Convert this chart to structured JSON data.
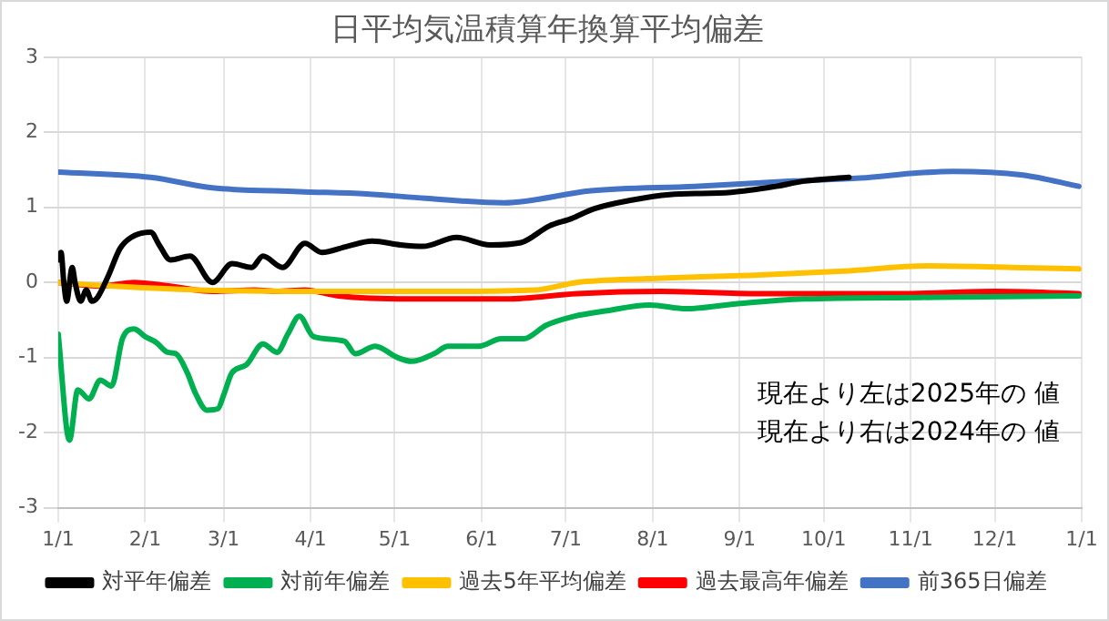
{
  "chart_data": {
    "type": "line",
    "title": "日平均気温積算年換算平均偏差",
    "xlim": [
      "2025-01-01",
      "2026-01-01"
    ],
    "xticks": [
      {
        "value": "2025-01-01",
        "label": "1/1"
      },
      {
        "value": "2025-02-01",
        "label": "2/1"
      },
      {
        "value": "2025-03-01",
        "label": "3/1"
      },
      {
        "value": "2025-04-01",
        "label": "4/1"
      },
      {
        "value": "2025-05-01",
        "label": "5/1"
      },
      {
        "value": "2025-06-01",
        "label": "6/1"
      },
      {
        "value": "2025-07-01",
        "label": "7/1"
      },
      {
        "value": "2025-08-01",
        "label": "8/1"
      },
      {
        "value": "2025-09-01",
        "label": "9/1"
      },
      {
        "value": "2025-10-01",
        "label": "10/1"
      },
      {
        "value": "2025-11-01",
        "label": "11/1"
      },
      {
        "value": "2025-12-01",
        "label": "12/1"
      },
      {
        "value": "2026-01-01",
        "label": "1/1"
      }
    ],
    "ylim": [
      -3,
      3
    ],
    "yticks": [
      -3,
      -2,
      -1,
      0,
      1,
      2,
      3
    ],
    "grid": true,
    "legend": "bottom",
    "marker": "none",
    "line_style": "solid",
    "annotations": [
      "現在より左は2025年の 値",
      "現在より右は2024年の 値"
    ],
    "series": [
      {
        "name": "対平年偏差",
        "color": "#000000",
        "x": [
          "2025-01-01",
          "2025-01-02",
          "2025-01-03",
          "2025-01-04",
          "2025-01-06",
          "2025-01-07",
          "2025-01-09",
          "2025-01-11",
          "2025-01-13",
          "2025-01-15",
          "2025-01-19",
          "2025-01-23",
          "2025-01-27",
          "2025-02-03",
          "2025-02-06",
          "2025-02-10",
          "2025-02-17",
          "2025-02-25",
          "2025-03-04",
          "2025-03-11",
          "2025-03-15",
          "2025-03-22",
          "2025-03-30",
          "2025-04-05",
          "2025-04-14",
          "2025-04-23",
          "2025-05-03",
          "2025-05-11",
          "2025-05-23",
          "2025-06-04",
          "2025-06-15",
          "2025-06-25",
          "2025-07-03",
          "2025-07-11",
          "2025-07-25",
          "2025-08-07",
          "2025-08-29",
          "2025-09-14",
          "2025-09-24",
          "2025-10-10"
        ],
        "values": [
          0.3,
          0.4,
          0.0,
          -0.25,
          0.2,
          0.0,
          -0.25,
          -0.1,
          -0.25,
          -0.2,
          0.1,
          0.45,
          0.6,
          0.67,
          0.5,
          0.3,
          0.35,
          0.0,
          0.25,
          0.2,
          0.35,
          0.2,
          0.52,
          0.4,
          0.48,
          0.55,
          0.5,
          0.48,
          0.6,
          0.5,
          0.53,
          0.75,
          0.85,
          0.98,
          1.1,
          1.17,
          1.2,
          1.28,
          1.35,
          1.4
        ]
      },
      {
        "name": "対前年偏差",
        "color": "#00b050",
        "x": [
          "2025-01-01",
          "2025-01-05",
          "2025-01-08",
          "2025-01-12",
          "2025-01-16",
          "2025-01-20",
          "2025-01-24",
          "2025-01-28",
          "2025-02-01",
          "2025-02-05",
          "2025-02-09",
          "2025-02-12",
          "2025-02-16",
          "2025-02-19",
          "2025-02-23",
          "2025-02-27",
          "2025-03-01",
          "2025-03-04",
          "2025-03-09",
          "2025-03-15",
          "2025-03-20",
          "2025-03-24",
          "2025-03-28",
          "2025-04-02",
          "2025-04-13",
          "2025-04-17",
          "2025-04-24",
          "2025-05-02",
          "2025-05-07",
          "2025-05-15",
          "2025-05-20",
          "2025-05-31",
          "2025-06-08",
          "2025-06-16",
          "2025-06-24",
          "2025-07-04",
          "2025-07-15",
          "2025-07-31",
          "2025-08-13",
          "2025-09-01",
          "2025-09-24",
          "2025-11-04",
          "2025-12-31"
        ],
        "values": [
          -0.69,
          -2.1,
          -1.43,
          -1.55,
          -1.3,
          -1.38,
          -0.74,
          -0.62,
          -0.72,
          -0.8,
          -0.93,
          -0.95,
          -1.2,
          -1.48,
          -1.7,
          -1.68,
          -1.5,
          -1.2,
          -1.1,
          -0.82,
          -0.93,
          -0.68,
          -0.45,
          -0.72,
          -0.78,
          -0.95,
          -0.85,
          -1.0,
          -1.05,
          -0.95,
          -0.85,
          -0.85,
          -0.75,
          -0.75,
          -0.57,
          -0.45,
          -0.38,
          -0.3,
          -0.35,
          -0.28,
          -0.22,
          -0.2,
          -0.18
        ]
      },
      {
        "name": "過去5年平均偏差",
        "color": "#ffc000",
        "x": [
          "2025-01-01",
          "2025-01-21",
          "2025-02-20",
          "2025-04-01",
          "2025-05-11",
          "2025-06-20",
          "2025-07-05",
          "2025-07-30",
          "2025-09-08",
          "2025-10-08",
          "2025-11-07",
          "2025-12-07",
          "2025-12-31"
        ],
        "values": [
          0.0,
          -0.05,
          -0.1,
          -0.12,
          -0.12,
          -0.1,
          0.0,
          0.05,
          0.1,
          0.15,
          0.22,
          0.2,
          0.18
        ]
      },
      {
        "name": "過去最高年偏差",
        "color": "#ff0000",
        "x": [
          "2025-01-01",
          "2025-01-16",
          "2025-01-28",
          "2025-02-10",
          "2025-02-25",
          "2025-03-12",
          "2025-03-20",
          "2025-03-30",
          "2025-04-11",
          "2025-05-06",
          "2025-06-10",
          "2025-07-05",
          "2025-08-04",
          "2025-09-08",
          "2025-10-28",
          "2025-12-01",
          "2025-12-31"
        ],
        "values": [
          0.0,
          -0.05,
          0.0,
          -0.05,
          -0.12,
          -0.1,
          -0.12,
          -0.1,
          -0.18,
          -0.22,
          -0.22,
          -0.15,
          -0.12,
          -0.15,
          -0.15,
          -0.12,
          -0.15
        ]
      },
      {
        "name": "前365日偏差",
        "color": "#4472c4",
        "x": [
          "2025-01-01",
          "2025-02-03",
          "2025-02-25",
          "2025-03-28",
          "2025-04-21",
          "2025-05-12",
          "2025-06-09",
          "2025-07-10",
          "2025-08-16",
          "2025-09-20",
          "2025-10-14",
          "2025-11-04",
          "2025-11-16",
          "2025-12-11",
          "2025-12-31"
        ],
        "values": [
          1.47,
          1.4,
          1.26,
          1.21,
          1.18,
          1.12,
          1.06,
          1.22,
          1.28,
          1.35,
          1.39,
          1.46,
          1.48,
          1.43,
          1.28
        ]
      }
    ]
  }
}
